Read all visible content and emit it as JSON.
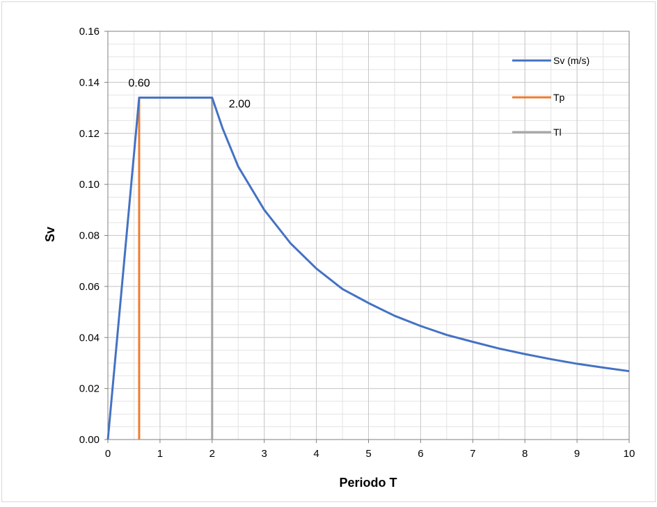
{
  "chart_data": {
    "type": "line",
    "title": "",
    "xlabel": "Periodo T",
    "ylabel": "Sv",
    "xlim": [
      0,
      10
    ],
    "ylim": [
      0,
      0.16
    ],
    "x_ticks": [
      0,
      1,
      2,
      3,
      4,
      5,
      6,
      7,
      8,
      9,
      10
    ],
    "y_ticks": [
      0.0,
      0.02,
      0.04,
      0.06,
      0.08,
      0.1,
      0.12,
      0.14,
      0.16
    ],
    "x_tick_labels": [
      "0",
      "1",
      "2",
      "3",
      "4",
      "5",
      "6",
      "7",
      "8",
      "9",
      "10"
    ],
    "y_tick_labels": [
      "0.00",
      "0.02",
      "0.04",
      "0.06",
      "0.08",
      "0.10",
      "0.12",
      "0.14",
      "0.16"
    ],
    "grid": true,
    "x_minor_step": 0.5,
    "y_minor_step": 0.005,
    "legend_position": "top-right",
    "series": [
      {
        "name": "Sv (m/s)",
        "color": "#4472C4",
        "points": [
          [
            0,
            0
          ],
          [
            0.6,
            0.134
          ],
          [
            1.0,
            0.134
          ],
          [
            1.5,
            0.134
          ],
          [
            2.0,
            0.134
          ],
          [
            2.2,
            0.122
          ],
          [
            2.5,
            0.107
          ],
          [
            3.0,
            0.09
          ],
          [
            3.5,
            0.077
          ],
          [
            4.0,
            0.067
          ],
          [
            4.5,
            0.059
          ],
          [
            5.0,
            0.0535
          ],
          [
            5.5,
            0.0485
          ],
          [
            6.0,
            0.0445
          ],
          [
            6.5,
            0.041
          ],
          [
            7.0,
            0.0383
          ],
          [
            7.5,
            0.0357
          ],
          [
            8.0,
            0.0335
          ],
          [
            8.5,
            0.0315
          ],
          [
            9.0,
            0.0297
          ],
          [
            9.5,
            0.0282
          ],
          [
            10.0,
            0.0268
          ]
        ]
      },
      {
        "name": "Tp",
        "color": "#ED7D31",
        "points": [
          [
            0.6,
            0
          ],
          [
            0.6,
            0.134
          ]
        ]
      },
      {
        "name": "Tl",
        "color": "#A5A5A5",
        "points": [
          [
            2.0,
            0
          ],
          [
            2.0,
            0.134
          ]
        ]
      }
    ],
    "annotations": [
      {
        "text": "0.60",
        "x": 0.6,
        "y": 0.134
      },
      {
        "text": "2.00",
        "x": 2.0,
        "y": 0.134
      }
    ]
  }
}
